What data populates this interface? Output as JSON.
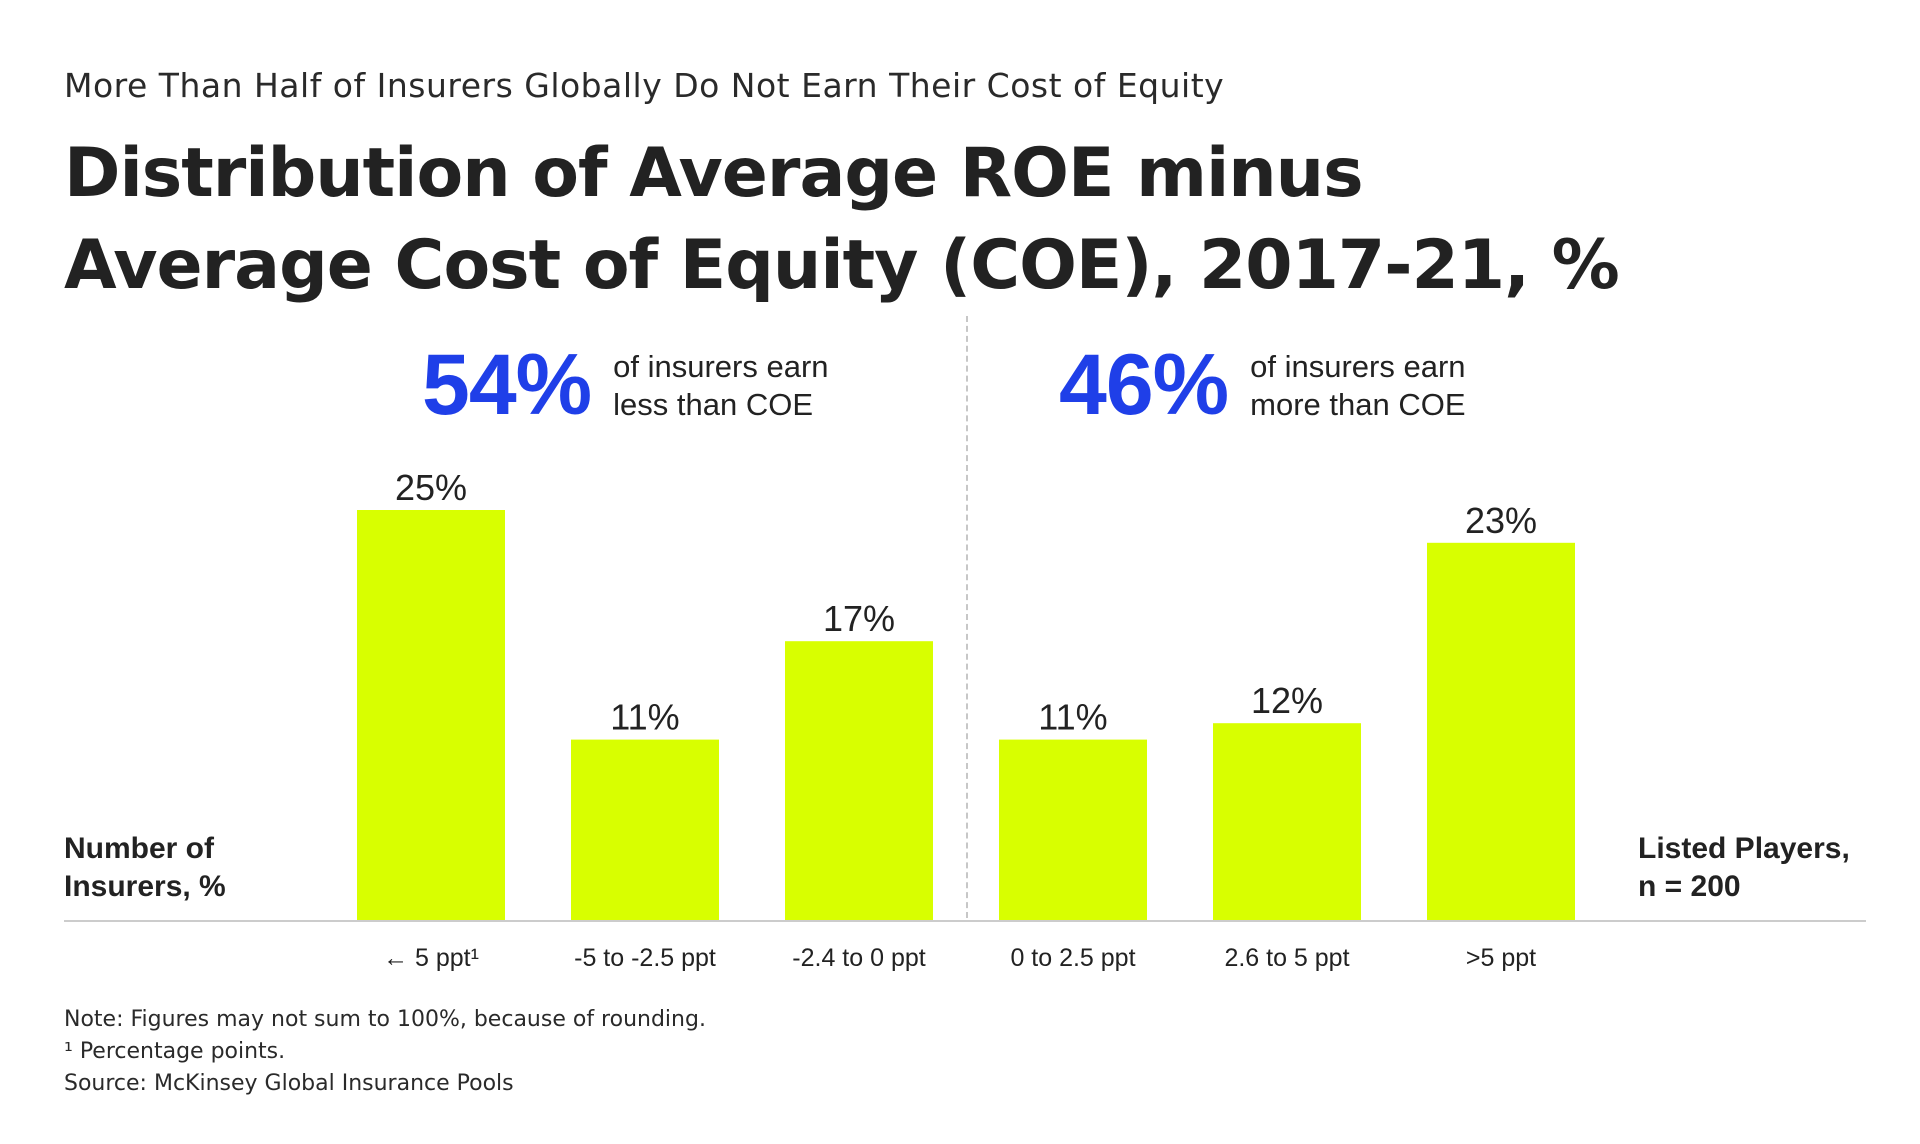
{
  "header": {
    "kicker": "More Than Half of Insurers Globally Do Not Earn Their Cost of Equity",
    "title_line1": "Distribution of Average ROE minus",
    "title_line2": "Average Cost of Equity (COE), 2017-21, %"
  },
  "callouts": {
    "left": {
      "value": "54%",
      "text_line1": "of insurers earn",
      "text_line2": "less than COE"
    },
    "right": {
      "value": "46%",
      "text_line1": "of insurers earn",
      "text_line2": "more than COE"
    }
  },
  "side_labels": {
    "ylabel_line1": "Number of",
    "ylabel_line2": "Insurers, %",
    "sample_line1": "Listed Players,",
    "sample_line2": "n = 200"
  },
  "notes": {
    "note": "Note: Figures may not sum to 100%, because of rounding.",
    "footnote": "¹ Percentage points.",
    "source": "Source: McKinsey Global Insurance Pools"
  },
  "colors": {
    "bar": "#d8ff00",
    "accent": "#1f3fe8",
    "axis": "#cccccc",
    "text": "#222222"
  },
  "chart_data": {
    "type": "bar",
    "title": "Distribution of Average ROE minus Average Cost of Equity (COE), 2017-21, %",
    "subtitle": "More Than Half of Insurers Globally Do Not Earn Their Cost of Equity",
    "categories": [
      "← 5 ppt¹",
      "-5 to -2.5 ppt",
      "-2.4 to 0 ppt",
      "0 to 2.5 ppt",
      "2.6 to 5 ppt",
      ">5 ppt"
    ],
    "values": [
      25,
      11,
      17,
      11,
      12,
      23
    ],
    "data_labels": [
      "25%",
      "11%",
      "17%",
      "11%",
      "12%",
      "23%"
    ],
    "xlabel": "",
    "ylabel": "Number of Insurers, %",
    "ylim": [
      0,
      25
    ],
    "grid": false,
    "legend": "none"
  }
}
